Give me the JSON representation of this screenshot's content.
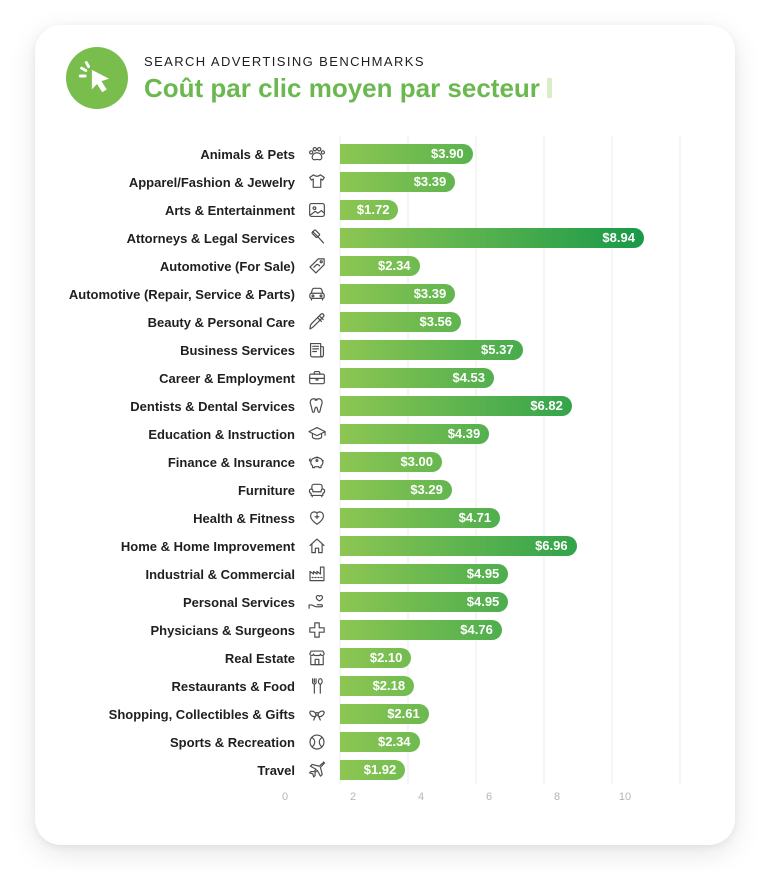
{
  "header": {
    "eyebrow": "SEARCH ADVERTISING BENCHMARKS",
    "title": "Coût par clic moyen par secteur",
    "logo_icon": "cursor-click-icon"
  },
  "colors": {
    "brand_green": "#6cb850",
    "logo_green": "#79be4d",
    "title_cursor_mark": "#d9edc6",
    "bar_gradient_start": "#8dc653",
    "bar_gradient_end": "#0a9447",
    "category_text": "#1f1f1f",
    "icon_stroke": "#4d4d4d",
    "axis_text": "#b5b5b5",
    "gridline": "#ebebeb",
    "bar_value_text": "#ffffff"
  },
  "chart_data": {
    "type": "bar",
    "orientation": "horizontal",
    "title": "Coût par clic moyen par secteur",
    "subtitle": "SEARCH ADVERTISING BENCHMARKS",
    "xlabel": "",
    "ylabel": "",
    "xlim": [
      0,
      10
    ],
    "x_ticks": [
      0,
      2,
      4,
      6,
      8,
      10
    ],
    "grid": true,
    "legend": false,
    "categories": [
      "Animals & Pets",
      "Apparel/Fashion & Jewelry",
      "Arts & Entertainment",
      "Attorneys & Legal Services",
      "Automotive (For Sale)",
      "Automotive (Repair, Service & Parts)",
      "Beauty & Personal Care",
      "Business Services",
      "Career & Employment",
      "Dentists & Dental Services",
      "Education & Instruction",
      "Finance & Insurance",
      "Furniture",
      "Health & Fitness",
      "Home & Home Improvement",
      "Industrial & Commercial",
      "Personal Services",
      "Physicians & Surgeons",
      "Real Estate",
      "Restaurants & Food",
      "Shopping, Collectibles & Gifts",
      "Sports & Recreation",
      "Travel"
    ],
    "values": [
      3.9,
      3.39,
      1.72,
      8.94,
      2.34,
      3.39,
      3.56,
      5.37,
      4.53,
      6.82,
      4.39,
      3.0,
      3.29,
      4.71,
      6.96,
      4.95,
      4.95,
      4.76,
      2.1,
      2.18,
      2.61,
      2.34,
      1.92
    ],
    "value_labels": [
      "$3.90",
      "$3.39",
      "$1.72",
      "$8.94",
      "$2.34",
      "$3.39",
      "$3.56",
      "$5.37",
      "$4.53",
      "$6.82",
      "$4.39",
      "$3.00",
      "$3.29",
      "$4.71",
      "$6.96",
      "$4.95",
      "$4.95",
      "$4.76",
      "$2.10",
      "$2.18",
      "$2.61",
      "$2.34",
      "$1.92"
    ],
    "icons": [
      "paw-icon",
      "tshirt-icon",
      "picture-icon",
      "gavel-icon",
      "car-tag-icon",
      "car-icon",
      "brush-icon",
      "newspaper-icon",
      "briefcase-icon",
      "tooth-icon",
      "graduation-cap-icon",
      "piggy-bank-icon",
      "armchair-icon",
      "heart-plus-icon",
      "house-icon",
      "factory-icon",
      "hand-heart-icon",
      "medical-cross-icon",
      "storefront-icon",
      "cutlery-icon",
      "gift-bow-icon",
      "ball-icon",
      "plane-icon"
    ]
  }
}
